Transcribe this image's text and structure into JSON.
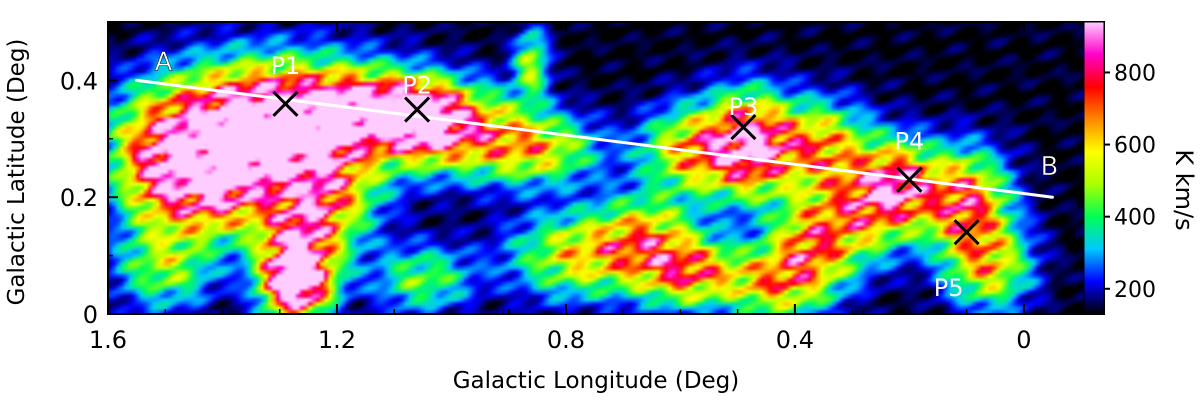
{
  "chart_data": {
    "type": "heatmap",
    "title": "",
    "xlabel": "Galactic Longitude (Deg)",
    "ylabel": "Galactic Latitude (Deg)",
    "xlim": [
      1.6,
      -0.14
    ],
    "ylim": [
      0,
      0.5
    ],
    "x_ticks": [
      1.6,
      1.2,
      0.8,
      0.4,
      0
    ],
    "x_tick_labels": [
      "1.6",
      "1.2",
      "0.8",
      "0.4",
      "0"
    ],
    "y_ticks": [
      0,
      0.2,
      0.4
    ],
    "y_tick_labels": [
      "0",
      "0.2",
      "0.4"
    ],
    "colorbar": {
      "label": "K km/s",
      "range": [
        130,
        940
      ],
      "ticks": [
        200,
        400,
        600,
        800
      ],
      "tick_labels": [
        "200",
        "400",
        "600",
        "800"
      ],
      "colors": [
        "#000000",
        "#0000ff",
        "#00c8ff",
        "#00ff55",
        "#aaff00",
        "#ffff00",
        "#ff8800",
        "#ff0000",
        "#ff00cc",
        "#ffccff"
      ]
    },
    "line": {
      "start": {
        "label": "A",
        "l": 1.55,
        "b": 0.4
      },
      "end": {
        "label": "B",
        "l": -0.05,
        "b": 0.2
      },
      "color": "#ffffff"
    },
    "points": [
      {
        "label": "P1",
        "l": 1.29,
        "b": 0.36
      },
      {
        "label": "P2",
        "l": 1.06,
        "b": 0.35
      },
      {
        "label": "P3",
        "l": 0.49,
        "b": 0.32
      },
      {
        "label": "P4",
        "l": 0.2,
        "b": 0.23
      },
      {
        "label": "P5",
        "l": 0.1,
        "b": 0.14
      }
    ],
    "blobs": [
      {
        "l": 1.3,
        "b": 0.33,
        "sl": 0.14,
        "sb": 0.07,
        "a": 780
      },
      {
        "l": 1.38,
        "b": 0.28,
        "sl": 0.1,
        "sb": 0.07,
        "a": 520
      },
      {
        "l": 1.42,
        "b": 0.2,
        "sl": 0.06,
        "sb": 0.05,
        "a": 420
      },
      {
        "l": 1.22,
        "b": 0.2,
        "sl": 0.06,
        "sb": 0.06,
        "a": 430
      },
      {
        "l": 1.27,
        "b": 0.05,
        "sl": 0.04,
        "sb": 0.04,
        "a": 920
      },
      {
        "l": 1.27,
        "b": 0.12,
        "sl": 0.05,
        "sb": 0.05,
        "a": 520
      },
      {
        "l": 1.13,
        "b": 0.35,
        "sl": 0.09,
        "sb": 0.04,
        "a": 560
      },
      {
        "l": 1.05,
        "b": 0.33,
        "sl": 0.05,
        "sb": 0.04,
        "a": 520
      },
      {
        "l": 0.96,
        "b": 0.31,
        "sl": 0.08,
        "sb": 0.05,
        "a": 420
      },
      {
        "l": 0.84,
        "b": 0.28,
        "sl": 0.07,
        "sb": 0.04,
        "a": 360
      },
      {
        "l": 0.86,
        "b": 0.43,
        "sl": 0.02,
        "sb": 0.04,
        "a": 360
      },
      {
        "l": 1.52,
        "b": 0.25,
        "sl": 0.05,
        "sb": 0.07,
        "a": 420
      },
      {
        "l": 1.5,
        "b": 0.08,
        "sl": 0.06,
        "sb": 0.05,
        "a": 330
      },
      {
        "l": 1.05,
        "b": 0.06,
        "sl": 0.06,
        "sb": 0.04,
        "a": 300
      },
      {
        "l": 0.78,
        "b": 0.1,
        "sl": 0.08,
        "sb": 0.05,
        "a": 420
      },
      {
        "l": 0.66,
        "b": 0.13,
        "sl": 0.06,
        "sb": 0.05,
        "a": 420
      },
      {
        "l": 0.58,
        "b": 0.07,
        "sl": 0.06,
        "sb": 0.04,
        "a": 520
      },
      {
        "l": 0.48,
        "b": 0.29,
        "sl": 0.05,
        "sb": 0.06,
        "a": 700
      },
      {
        "l": 0.58,
        "b": 0.28,
        "sl": 0.06,
        "sb": 0.05,
        "a": 480
      },
      {
        "l": 0.36,
        "b": 0.29,
        "sl": 0.06,
        "sb": 0.05,
        "a": 480
      },
      {
        "l": 0.3,
        "b": 0.17,
        "sl": 0.06,
        "sb": 0.06,
        "a": 420
      },
      {
        "l": 0.38,
        "b": 0.1,
        "sl": 0.05,
        "sb": 0.06,
        "a": 480
      },
      {
        "l": 0.22,
        "b": 0.22,
        "sl": 0.05,
        "sb": 0.05,
        "a": 640
      },
      {
        "l": 0.1,
        "b": 0.19,
        "sl": 0.05,
        "sb": 0.06,
        "a": 600
      },
      {
        "l": 0.06,
        "b": 0.08,
        "sl": 0.05,
        "sb": 0.05,
        "a": 420
      },
      {
        "l": 0.45,
        "b": 0.05,
        "sl": 0.05,
        "sb": 0.04,
        "a": 360
      }
    ]
  }
}
